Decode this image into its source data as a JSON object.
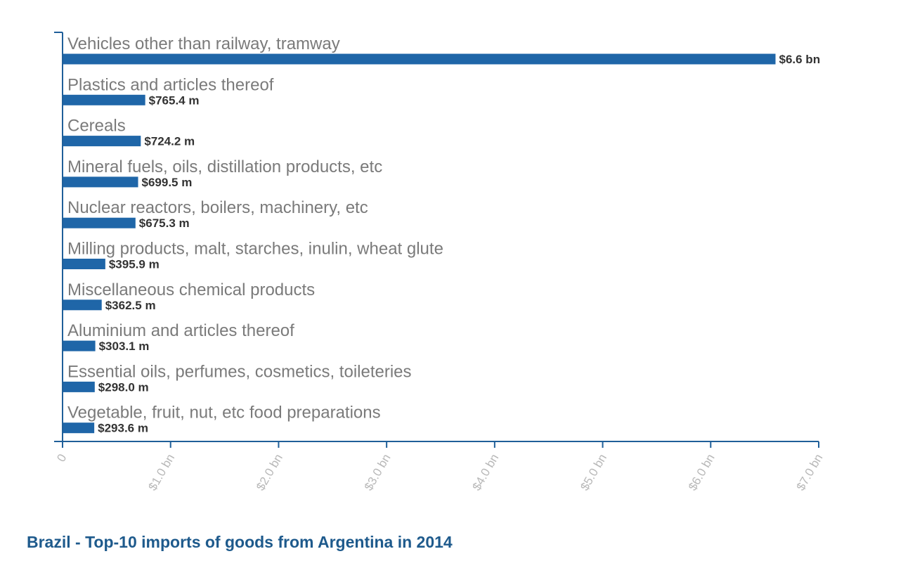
{
  "chart_data": {
    "type": "bar",
    "orientation": "horizontal",
    "title": "Brazil - Top-10 imports of goods from Argentina in 2014",
    "categories": [
      "Vehicles other than railway, tramway",
      "Plastics and articles thereof",
      "Cereals",
      "Mineral fuels, oils, distillation products, etc",
      "Nuclear reactors, boilers, machinery, etc",
      "Milling products, malt, starches, inulin, wheat glute",
      "Miscellaneous chemical products",
      "Aluminium and articles thereof",
      "Essential oils, perfumes, cosmetics, toileteries",
      "Vegetable, fruit, nut, etc food preparations"
    ],
    "values": [
      6.6,
      0.7654,
      0.7242,
      0.6995,
      0.6753,
      0.3959,
      0.3625,
      0.3031,
      0.298,
      0.2936
    ],
    "value_labels": [
      "$6.6 bn",
      "$765.4 m",
      "$724.2 m",
      "$699.5 m",
      "$675.3 m",
      "$395.9 m",
      "$362.5 m",
      "$303.1 m",
      "$298.0 m",
      "$293.6 m"
    ],
    "xlim": [
      0,
      7
    ],
    "xticks": [
      0,
      1,
      2,
      3,
      4,
      5,
      6,
      7
    ],
    "xtick_labels": [
      "0",
      "$1.0 bn",
      "$2.0 bn",
      "$3.0 bn",
      "$4.0 bn",
      "$5.0 bn",
      "$6.0 bn",
      "$7.0 bn"
    ],
    "xlabel": "",
    "ylabel": "",
    "grid": false,
    "legend": "none",
    "colors": {
      "bar": "#1f66a8",
      "axis": "#1f5f99",
      "title": "#1e5a8c"
    }
  }
}
